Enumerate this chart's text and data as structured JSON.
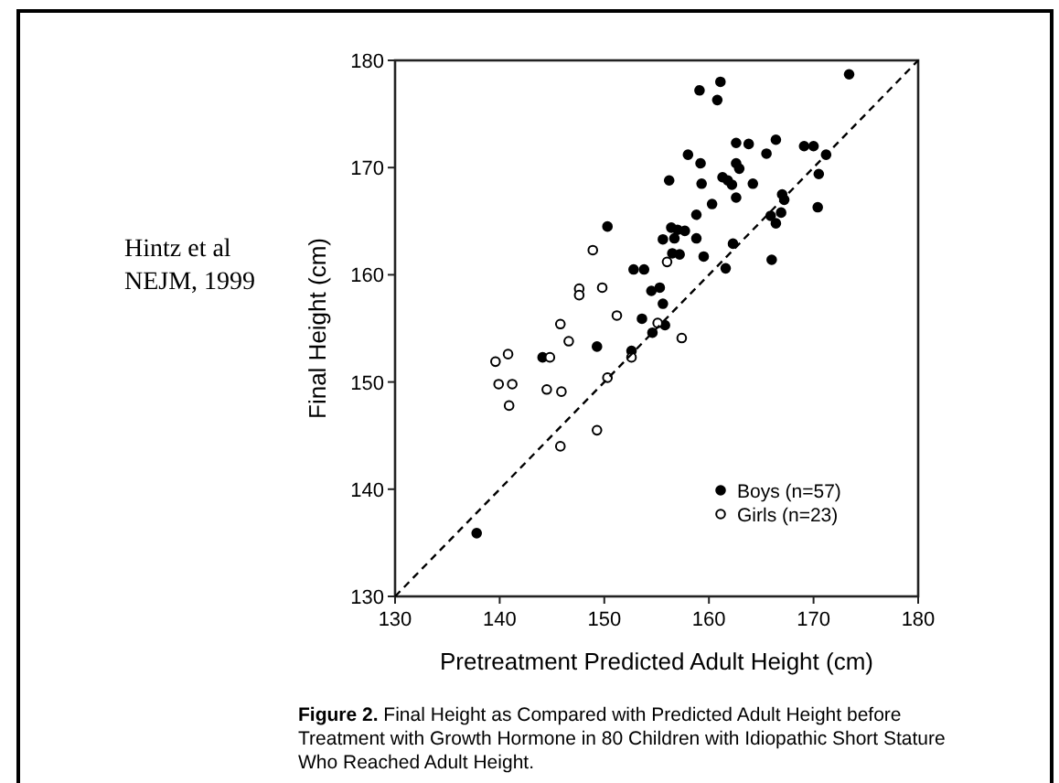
{
  "chart_data": {
    "type": "scatter",
    "xlabel": "Pretreatment Predicted Adult Height (cm)",
    "ylabel": "Final Height (cm)",
    "xlim": [
      130,
      180
    ],
    "xticks": [
      130,
      140,
      150,
      160,
      170,
      180
    ],
    "ylim": [
      130,
      180
    ],
    "yticks": [
      130,
      140,
      150,
      160,
      170,
      180
    ],
    "grid": false,
    "legend": "bottom right",
    "annotations": [
      "Hintz et al\nNEJM, 1999",
      "Figure 2. Final Height as Compared with Predicted Adult Height before Treatment with Growth Hormone in 80 Children with Idiopathic Short Stature Who Reached Adult Height."
    ],
    "series": [
      {
        "name": "Boys (n=57)",
        "color": "#000000",
        "marker": "circle",
        "x": [
          173.4,
          159.1,
          161.1,
          160.8,
          158.0,
          159.2,
          156.2,
          162.6,
          163.8,
          165.5,
          166.4,
          169.1,
          170.0,
          171.2,
          162.6,
          162.9,
          161.3,
          161.8,
          162.2,
          159.3,
          164.2,
          162.6,
          160.3,
          167.0,
          167.2,
          170.5,
          170.4,
          158.8,
          165.9,
          166.4,
          166.9,
          150.3,
          156.4,
          157.0,
          157.7,
          155.6,
          156.7,
          158.8,
          162.3,
          156.5,
          157.2,
          159.5,
          166.0,
          161.6,
          152.8,
          153.8,
          154.5,
          155.3,
          155.6,
          153.6,
          155.8,
          154.6,
          149.3,
          144.1,
          152.6,
          137.8
        ],
        "values": [
          178.7,
          177.2,
          178.0,
          176.3,
          171.2,
          170.4,
          168.8,
          172.3,
          172.2,
          171.3,
          172.6,
          172.0,
          172.0,
          171.2,
          170.4,
          169.9,
          169.1,
          168.8,
          168.4,
          168.5,
          168.5,
          167.2,
          166.6,
          167.5,
          167.0,
          169.4,
          166.3,
          165.6,
          165.5,
          164.8,
          165.8,
          164.5,
          164.4,
          164.2,
          164.1,
          163.3,
          163.4,
          163.4,
          162.9,
          162.0,
          161.9,
          161.7,
          161.4,
          160.6,
          160.5,
          160.5,
          158.5,
          158.8,
          157.3,
          155.9,
          155.3,
          154.6,
          153.3,
          152.3,
          152.9,
          135.9
        ]
      },
      {
        "name": "Girls (n=23)",
        "color": "#ffffff",
        "marker": "circle",
        "x": [
          148.9,
          147.6,
          147.6,
          149.8,
          151.2,
          145.8,
          146.6,
          157.4,
          140.8,
          139.6,
          139.9,
          141.2,
          140.9,
          144.5,
          145.9,
          150.3,
          149.3,
          145.8,
          156.0,
          155.1,
          152.6,
          144.8
        ],
        "values": [
          162.3,
          158.7,
          158.1,
          158.8,
          156.2,
          155.4,
          153.8,
          154.1,
          152.6,
          151.9,
          149.8,
          149.8,
          147.8,
          149.3,
          149.1,
          150.4,
          145.5,
          144.0,
          161.2,
          155.5,
          152.3,
          152.3
        ]
      },
      {
        "type": "line",
        "color": "#000000",
        "line_style": "dashed",
        "marker": "none",
        "x": [
          130,
          180
        ],
        "values": [
          130,
          180
        ]
      }
    ]
  }
}
